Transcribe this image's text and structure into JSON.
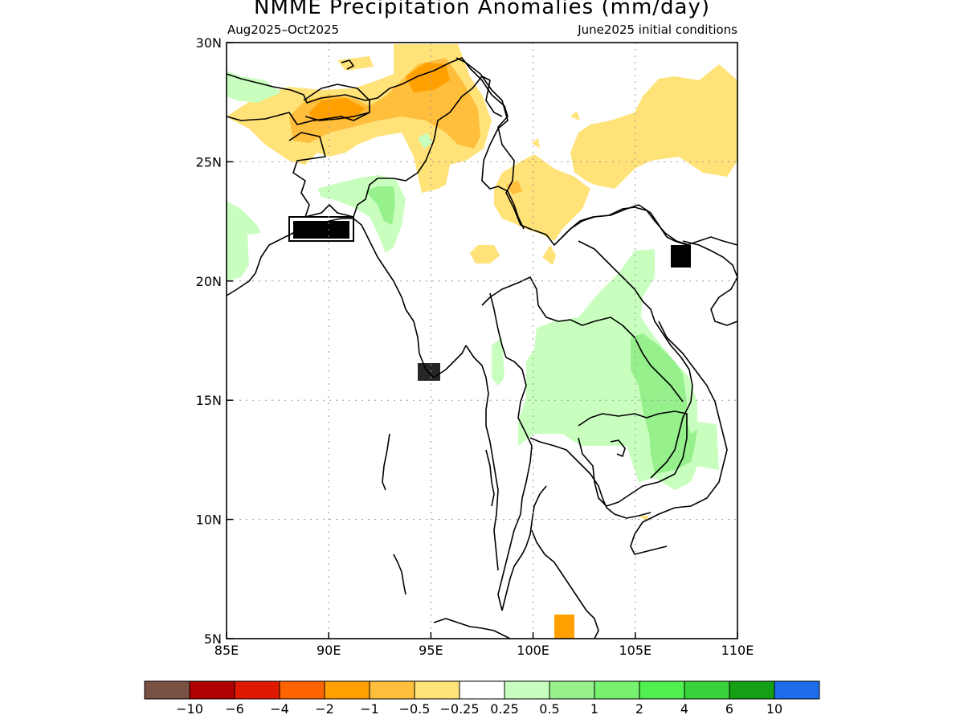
{
  "map": {
    "title": "NMME Precipitation Anomalies (mm/day)",
    "period": "Aug2025–Oct2025",
    "initial_conditions": "June2025 initial conditions",
    "lon_range": [
      85,
      110
    ],
    "lat_range": [
      5,
      30
    ],
    "lon_ticks": [
      {
        "value": 85,
        "label": "85E"
      },
      {
        "value": 90,
        "label": "90E"
      },
      {
        "value": 95,
        "label": "95E"
      },
      {
        "value": 100,
        "label": "100E"
      },
      {
        "value": 105,
        "label": "105E"
      },
      {
        "value": 110,
        "label": "110E"
      }
    ],
    "lat_ticks": [
      {
        "value": 5,
        "label": "5N"
      },
      {
        "value": 10,
        "label": "10N"
      },
      {
        "value": 15,
        "label": "15N"
      },
      {
        "value": 20,
        "label": "20N"
      },
      {
        "value": 25,
        "label": "25N"
      },
      {
        "value": 30,
        "label": "30N"
      }
    ],
    "grid": true
  },
  "legend": {
    "colors": [
      "#7a5244",
      "#b00000",
      "#e01a00",
      "#ff6400",
      "#ffa000",
      "#ffbe3c",
      "#ffe278",
      "#ffffff",
      "#c8ffbe",
      "#96f08c",
      "#78f070",
      "#50f050",
      "#37d23c",
      "#14a014",
      "#1e6eeb"
    ],
    "labels": [
      "-10",
      "-6",
      "-4",
      "-2",
      "-1",
      "-0.5",
      "-0.25",
      "0.25",
      "0.5",
      "1",
      "2",
      "4",
      "6",
      "10"
    ]
  },
  "anomaly_regions": [
    {
      "name": "nepal-bhutan-dry",
      "color": "#ffe278"
    },
    {
      "name": "nepal-dry-core",
      "color": "#ffbe3c"
    },
    {
      "name": "himalaya-dry-core",
      "color": "#ffa000"
    },
    {
      "name": "south-china-dry",
      "color": "#ffe278"
    },
    {
      "name": "yunnan-dry",
      "color": "#ffe278"
    },
    {
      "name": "northeast-myanmar-dry",
      "color": "#ffe278"
    },
    {
      "name": "bangladesh-wet",
      "color": "#c8ffbe"
    },
    {
      "name": "manipur-wet",
      "color": "#96f08c"
    },
    {
      "name": "west-bengal-wet",
      "color": "#c8ffbe"
    },
    {
      "name": "northwest-coast-wet",
      "color": "#c8ffbe"
    },
    {
      "name": "indochina-wet",
      "color": "#c8ffbe"
    },
    {
      "name": "laos-vietnam-wet-core",
      "color": "#96f08c"
    },
    {
      "name": "malaysia-dry",
      "color": "#ffa000"
    }
  ]
}
